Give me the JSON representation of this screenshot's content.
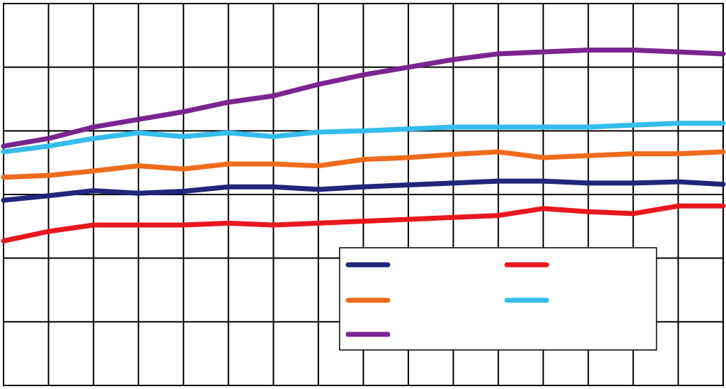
{
  "chart_data": {
    "type": "line",
    "title": "",
    "xlabel": "",
    "ylabel": "",
    "grid": true,
    "legend_position": "bottom-right",
    "x": [
      1,
      2,
      3,
      4,
      5,
      6,
      7,
      8,
      9,
      10,
      11,
      12,
      13,
      14,
      15,
      16,
      17
    ],
    "ylim": [
      0,
      6
    ],
    "series": [
      {
        "name": "",
        "color": "#22257a",
        "values": [
          2.91,
          2.98,
          3.06,
          3.02,
          3.05,
          3.12,
          3.12,
          3.08,
          3.12,
          3.15,
          3.18,
          3.21,
          3.21,
          3.18,
          3.18,
          3.2,
          3.16
        ]
      },
      {
        "name": "",
        "color": "#e8171f",
        "values": [
          2.27,
          2.42,
          2.52,
          2.52,
          2.52,
          2.55,
          2.52,
          2.55,
          2.58,
          2.61,
          2.64,
          2.67,
          2.78,
          2.73,
          2.7,
          2.82,
          2.82
        ]
      },
      {
        "name": "",
        "color": "#ef6b1c",
        "values": [
          3.27,
          3.3,
          3.37,
          3.45,
          3.4,
          3.48,
          3.48,
          3.45,
          3.55,
          3.58,
          3.63,
          3.67,
          3.58,
          3.61,
          3.64,
          3.64,
          3.67
        ]
      },
      {
        "name": "",
        "color": "#34bdec",
        "values": [
          3.67,
          3.76,
          3.88,
          3.97,
          3.91,
          3.97,
          3.91,
          3.98,
          4.0,
          4.03,
          4.06,
          4.06,
          4.06,
          4.06,
          4.09,
          4.12,
          4.12
        ]
      },
      {
        "name": "",
        "color": "#7a2491",
        "values": [
          3.76,
          3.88,
          4.06,
          4.18,
          4.3,
          4.45,
          4.55,
          4.73,
          4.88,
          5.0,
          5.12,
          5.21,
          5.24,
          5.27,
          5.27,
          5.24,
          5.21
        ]
      }
    ],
    "legend": [
      {
        "series": 0,
        "label": ""
      },
      {
        "series": 1,
        "label": ""
      },
      {
        "series": 2,
        "label": ""
      },
      {
        "series": 3,
        "label": ""
      },
      {
        "series": 4,
        "label": ""
      }
    ]
  }
}
